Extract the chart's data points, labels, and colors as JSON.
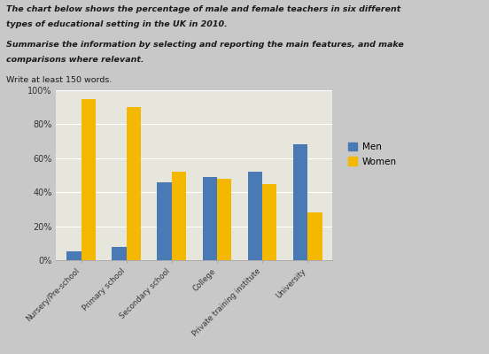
{
  "title_line1": "The chart below shows the percentage of male and female teachers in six different",
  "title_line2": "types of educational setting in the UK in 2010.",
  "subtitle_line1": "Summarise the information by selecting and reporting the main features, and make",
  "subtitle_line2": "comparisons where relevant.",
  "write_prompt": "Write at least 150 words.",
  "categories": [
    "Nursery/Pre-school",
    "Primary school",
    "Secondary school",
    "College",
    "Private training institute",
    "University"
  ],
  "men_values": [
    5,
    8,
    46,
    49,
    52,
    68
  ],
  "women_values": [
    95,
    90,
    52,
    48,
    45,
    28
  ],
  "men_color": "#4a7ab5",
  "women_color": "#F5B800",
  "background_color": "#C8C8C8",
  "chart_bg": "#E6E6DC",
  "ylim": [
    0,
    100
  ],
  "yticks": [
    0,
    20,
    40,
    60,
    80,
    100
  ],
  "ytick_labels": [
    "0%",
    "20%",
    "40%",
    "60%",
    "80%",
    "100%"
  ],
  "legend_men": "Men",
  "legend_women": "Women"
}
